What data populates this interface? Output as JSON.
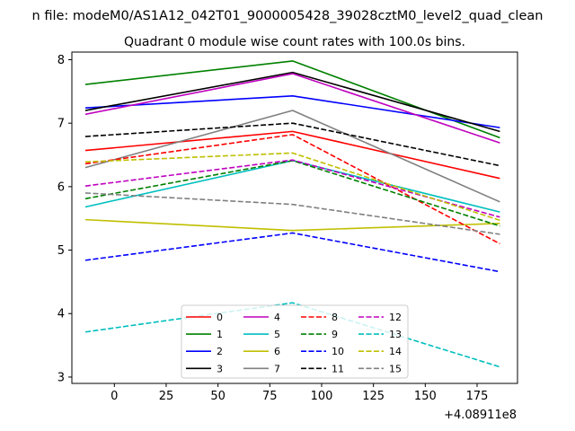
{
  "chart_data": {
    "type": "line",
    "suptitle": "n file: modeM0/AS1A12_042T01_9000005428_39028cztM0_level2_quad_clean",
    "title": "Quadrant 0 module wise count rates with 100.0s bins.",
    "xlabel": "",
    "ylabel": "",
    "x_offset_label": "+4.08911e8",
    "xlim": [
      -20.5,
      194.5
    ],
    "ylim": [
      2.9,
      8.12
    ],
    "xticks": [
      0,
      25,
      50,
      75,
      100,
      125,
      150,
      175
    ],
    "yticks": [
      3,
      4,
      5,
      6,
      7,
      8
    ],
    "x": [
      -14,
      86,
      186
    ],
    "grid": false,
    "legend": {
      "placement": "lower-center",
      "columns": 4
    },
    "series": [
      {
        "name": "0",
        "color": "#ff0000",
        "dash": "solid",
        "values": [
          6.57,
          6.87,
          6.13
        ]
      },
      {
        "name": "1",
        "color": "#008000",
        "dash": "solid",
        "values": [
          7.61,
          7.98,
          6.77
        ]
      },
      {
        "name": "2",
        "color": "#0000ff",
        "dash": "solid",
        "values": [
          7.24,
          7.43,
          6.93
        ]
      },
      {
        "name": "3",
        "color": "#000000",
        "dash": "solid",
        "values": [
          7.2,
          7.8,
          6.87
        ]
      },
      {
        "name": "4",
        "color": "#bf00bf",
        "dash": "solid",
        "values": [
          7.14,
          7.78,
          6.69
        ]
      },
      {
        "name": "5",
        "color": "#00bfbf",
        "dash": "solid",
        "values": [
          5.68,
          6.41,
          5.6
        ]
      },
      {
        "name": "6",
        "color": "#bfbf00",
        "dash": "solid",
        "values": [
          5.48,
          5.31,
          5.42
        ]
      },
      {
        "name": "7",
        "color": "#808080",
        "dash": "solid",
        "values": [
          6.3,
          7.2,
          5.76
        ]
      },
      {
        "name": "8",
        "color": "#ff0000",
        "dash": "dashed",
        "values": [
          6.36,
          6.82,
          5.1
        ]
      },
      {
        "name": "9",
        "color": "#008000",
        "dash": "dashed",
        "values": [
          5.81,
          6.41,
          5.38
        ]
      },
      {
        "name": "10",
        "color": "#0000ff",
        "dash": "dashed",
        "values": [
          4.84,
          5.27,
          4.66
        ]
      },
      {
        "name": "11",
        "color": "#000000",
        "dash": "dashed",
        "values": [
          6.79,
          7.0,
          6.33
        ]
      },
      {
        "name": "12",
        "color": "#bf00bf",
        "dash": "dashed",
        "values": [
          6.01,
          6.42,
          5.52
        ]
      },
      {
        "name": "13",
        "color": "#00bfbf",
        "dash": "dashed",
        "values": [
          3.71,
          4.17,
          3.16
        ]
      },
      {
        "name": "14",
        "color": "#bfbf00",
        "dash": "dashed",
        "values": [
          6.39,
          6.53,
          5.47
        ]
      },
      {
        "name": "15",
        "color": "#808080",
        "dash": "dashed",
        "values": [
          5.9,
          5.72,
          5.25
        ]
      }
    ]
  }
}
